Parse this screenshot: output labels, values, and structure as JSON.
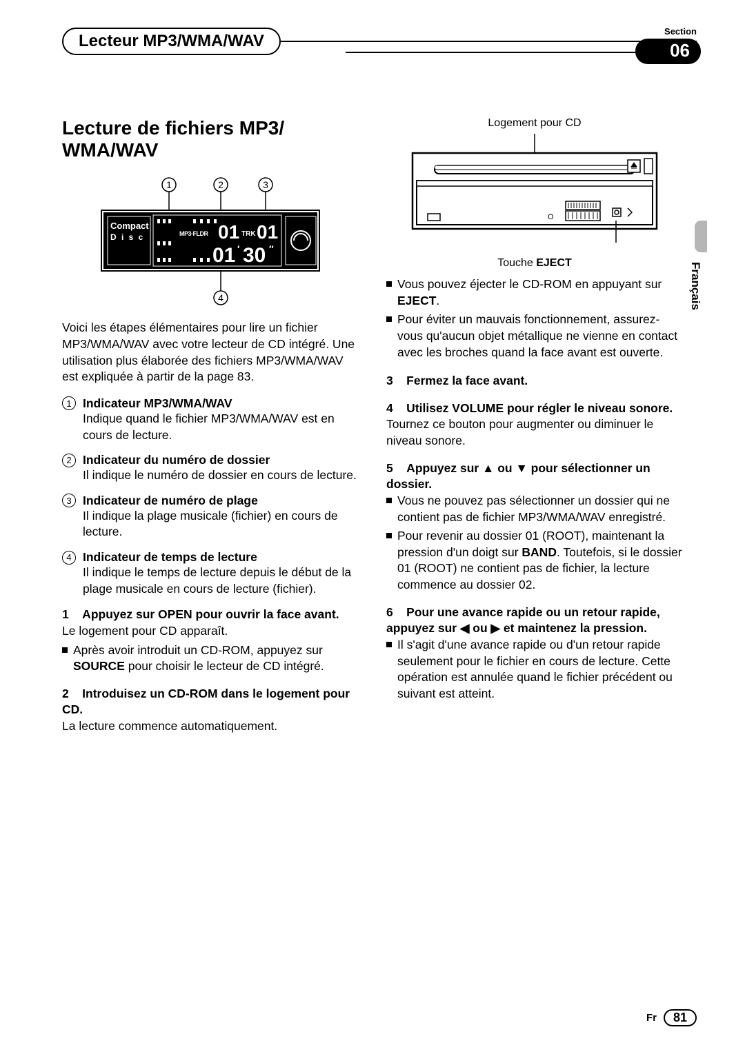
{
  "header": {
    "title": "Lecteur MP3/WMA/WAV",
    "section_label": "Section",
    "section_number": "06"
  },
  "language_tab": "Français",
  "footer": {
    "lang_code": "Fr",
    "page_number": "81"
  },
  "left": {
    "main_title": "Lecture de fichiers MP3/\nWMA/WAV",
    "display": {
      "callouts": [
        "1",
        "2",
        "3",
        "4"
      ],
      "compact": "Compact",
      "disc": "D i s c",
      "fldr_label": "FLDR",
      "fldr_val": "01",
      "trk_label": "TRK",
      "trk_val": "01",
      "time_min": "01",
      "time_sec": "30",
      "quote": "″"
    },
    "intro": "Voici les étapes élémentaires pour lire un fichier MP3/WMA/WAV avec votre lecteur de CD intégré. Une utilisation plus élaborée des fichiers MP3/WMA/WAV est expliquée à partir de la page 83.",
    "indicators": [
      {
        "n": "1",
        "title": "Indicateur MP3/WMA/WAV",
        "body": "Indique quand le fichier MP3/WMA/WAV est en cours de lecture."
      },
      {
        "n": "2",
        "title": "Indicateur du numéro de dossier",
        "body": "Il indique le numéro de dossier en cours de lecture."
      },
      {
        "n": "3",
        "title": "Indicateur de numéro de plage",
        "body": "Il indique la plage musicale (fichier) en cours de lecture."
      },
      {
        "n": "4",
        "title": "Indicateur de temps de lecture",
        "body": "Il indique le temps de lecture depuis le début de la plage musicale en cours de lecture (fichier)."
      }
    ],
    "steps": [
      {
        "head": "1    Appuyez sur OPEN pour ouvrir la face avant.",
        "body": "Le logement pour CD apparaît.",
        "bullets": [
          {
            "pre": "Après avoir introduit un CD-ROM, appuyez sur ",
            "bold": "SOURCE",
            "post": " pour choisir le lecteur de CD intégré."
          }
        ]
      },
      {
        "head": "2    Introduisez un CD-ROM dans le logement pour CD.",
        "body": "La lecture commence automatiquement."
      }
    ]
  },
  "right": {
    "device": {
      "top_label": "Logement pour CD",
      "eject_pre": "Touche ",
      "eject_bold": "EJECT"
    },
    "bullets_top": [
      {
        "pre": "Vous pouvez éjecter le CD-ROM en appuyant sur ",
        "bold": "EJECT",
        "post": "."
      },
      {
        "pre": "Pour éviter un mauvais fonctionnement, assurez-vous qu'aucun objet métallique ne vienne en contact avec les broches quand la face avant est ouverte.",
        "bold": "",
        "post": ""
      }
    ],
    "steps": [
      {
        "head": "3    Fermez la face avant."
      },
      {
        "head": "4    Utilisez VOLUME pour régler le niveau sonore.",
        "body": "Tournez ce bouton pour augmenter ou diminuer le niveau sonore."
      },
      {
        "head": "5    Appuyez sur ▲ ou ▼ pour sélectionner un dossier.",
        "bullets": [
          {
            "pre": "Vous ne pouvez pas sélectionner un dossier qui ne contient pas de fichier MP3/WMA/WAV enregistré.",
            "bold": "",
            "post": ""
          },
          {
            "pre": "Pour revenir au dossier 01 (ROOT), maintenant la pression d'un doigt sur ",
            "bold": "BAND",
            "post": ". Toutefois, si le dossier 01 (ROOT) ne contient pas de fichier, la lecture commence au dossier 02."
          }
        ]
      },
      {
        "head": "6    Pour une avance rapide ou un retour rapide, appuyez sur ◀ ou ▶ et maintenez la pression.",
        "bullets": [
          {
            "pre": "Il s'agit d'une avance rapide ou d'un retour rapide seulement pour le fichier en cours de lecture. Cette opération est annulée quand le fichier précédent ou suivant est atteint.",
            "bold": "",
            "post": ""
          }
        ]
      }
    ]
  }
}
